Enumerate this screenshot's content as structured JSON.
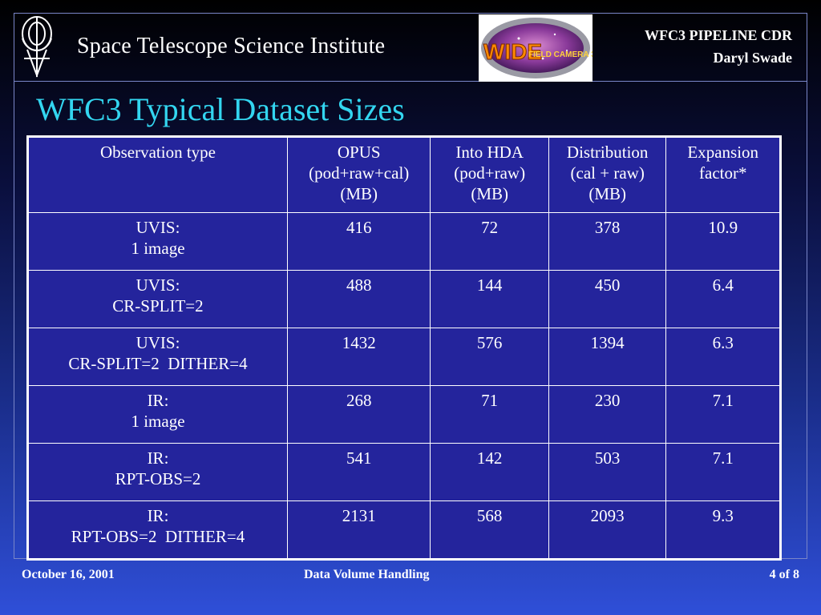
{
  "header": {
    "institute": "Space Telescope Science Institute",
    "presentation_title": "WFC3 PIPELINE CDR",
    "author": "Daryl Swade",
    "patch_text": "WIDE FIELD CAMERA 3"
  },
  "slide": {
    "title": "WFC3 Typical Dataset Sizes"
  },
  "table": {
    "columns": [
      [
        "Observation type"
      ],
      [
        "OPUS",
        "(pod+raw+cal)",
        "(MB)"
      ],
      [
        "Into HDA",
        "(pod+raw)",
        "(MB)"
      ],
      [
        "Distribution",
        "(cal + raw)",
        "(MB)"
      ],
      [
        "Expansion",
        "factor*"
      ]
    ],
    "rows": [
      {
        "type": [
          "UVIS:",
          "1 image"
        ],
        "opus": "416",
        "hda": "72",
        "distribution": "378",
        "expansion": "10.9"
      },
      {
        "type": [
          "UVIS:",
          "CR-SPLIT=2"
        ],
        "opus": "488",
        "hda": "144",
        "distribution": "450",
        "expansion": "6.4"
      },
      {
        "type": [
          "UVIS:",
          "CR-SPLIT=2  DITHER=4"
        ],
        "opus": "1432",
        "hda": "576",
        "distribution": "1394",
        "expansion": "6.3"
      },
      {
        "type": [
          "IR:",
          "1 image"
        ],
        "opus": "268",
        "hda": "71",
        "distribution": "230",
        "expansion": "7.1"
      },
      {
        "type": [
          "IR:",
          "RPT-OBS=2"
        ],
        "opus": "541",
        "hda": "142",
        "distribution": "503",
        "expansion": "7.1"
      },
      {
        "type": [
          "IR:",
          "RPT-OBS=2  DITHER=4"
        ],
        "opus": "2131",
        "hda": "568",
        "distribution": "2093",
        "expansion": "9.3"
      }
    ]
  },
  "footer": {
    "date": "October 16, 2001",
    "topic": "Data Volume Handling",
    "page": "4 of 8"
  },
  "colors": {
    "title": "#33d6f0",
    "table_background": "#24249c",
    "frame": "#7a86c8"
  }
}
